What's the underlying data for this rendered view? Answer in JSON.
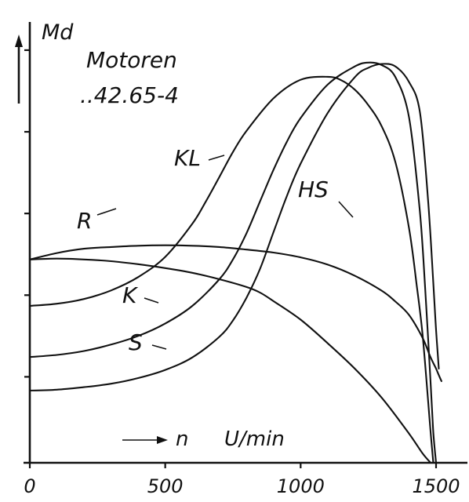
{
  "chart_data": {
    "type": "line",
    "title": "Motoren ..42.65-4",
    "ylabel": "Md",
    "xlabel": "n",
    "xunit": "U/min",
    "xlim": [
      0,
      1530
    ],
    "ylim": [
      0,
      100
    ],
    "xticks": [
      0,
      500,
      1000,
      1500
    ],
    "xtick_labels": [
      "0",
      "500",
      "1000",
      "1500"
    ],
    "yticks_unlabeled": [
      20,
      39,
      58,
      77,
      96
    ],
    "grid": false,
    "legend": "inline labels",
    "series": [
      {
        "name": "KL",
        "x": [
          0,
          100,
          200,
          300,
          400,
          500,
          600,
          650,
          700,
          750,
          800,
          900,
          1000,
          1100,
          1150,
          1200,
          1250,
          1300,
          1350,
          1400,
          1430,
          1450,
          1470,
          1480,
          1490
        ],
        "y": [
          36.5,
          37,
          38.1,
          40.1,
          43.2,
          47.9,
          55.6,
          60.8,
          66.5,
          72.3,
          77.2,
          84.8,
          89.1,
          89.8,
          89,
          86.8,
          83.2,
          78.2,
          69.9,
          54.6,
          40.6,
          30,
          15,
          7,
          0
        ]
      },
      {
        "name": "HS",
        "x": [
          0,
          100,
          200,
          300,
          400,
          500,
          600,
          700,
          800,
          900,
          1000,
          1100,
          1200,
          1300,
          1350,
          1400,
          1450,
          1480,
          1500,
          1510,
          1520
        ],
        "y": [
          47.3,
          48.8,
          49.8,
          50.2,
          50.5,
          50.6,
          50.5,
          50.2,
          49.6,
          48.9,
          47.8,
          46.1,
          43.5,
          40,
          37.5,
          34.4,
          29.1,
          24.5,
          21.9,
          20.4,
          19
        ]
      },
      {
        "name": "R",
        "x": [
          0,
          100,
          200,
          300,
          400,
          500,
          600,
          700,
          800,
          850,
          900,
          1000,
          1100,
          1200,
          1300,
          1400,
          1450,
          1480
        ],
        "y": [
          47.3,
          47.5,
          47.3,
          46.9,
          46.2,
          45.3,
          44.2,
          42.7,
          40.9,
          39.6,
          37.6,
          33.3,
          27.8,
          21.9,
          15.1,
          6.8,
          2.2,
          0
        ]
      },
      {
        "name": "K",
        "x": [
          0,
          100,
          200,
          300,
          400,
          500,
          600,
          700,
          750,
          800,
          850,
          900,
          950,
          1000,
          1100,
          1200,
          1250,
          1300,
          1350,
          1400,
          1440,
          1460,
          1480,
          1490,
          1500
        ],
        "y": [
          24.6,
          25.1,
          26,
          27.5,
          29.5,
          32.4,
          36.5,
          42.7,
          47.3,
          53.4,
          60.8,
          68.2,
          74.8,
          80.2,
          88,
          92.2,
          93.1,
          92.5,
          89.7,
          80.4,
          58.6,
          40.3,
          18.4,
          7,
          0
        ]
      },
      {
        "name": "S",
        "x": [
          0,
          100,
          200,
          300,
          400,
          500,
          600,
          700,
          750,
          800,
          850,
          900,
          950,
          1000,
          1100,
          1200,
          1250,
          1300,
          1350,
          1400,
          1440,
          1470,
          1490,
          1500,
          1510
        ],
        "y": [
          16.8,
          17,
          17.6,
          18.4,
          19.7,
          21.6,
          24.5,
          29.3,
          33.1,
          38.4,
          45.1,
          53.7,
          62.2,
          69.6,
          81.4,
          89.7,
          91.9,
          92.8,
          92.2,
          88.6,
          81.7,
          61.6,
          41.8,
          30.9,
          21.9
        ]
      }
    ],
    "annotation": "→ n"
  }
}
